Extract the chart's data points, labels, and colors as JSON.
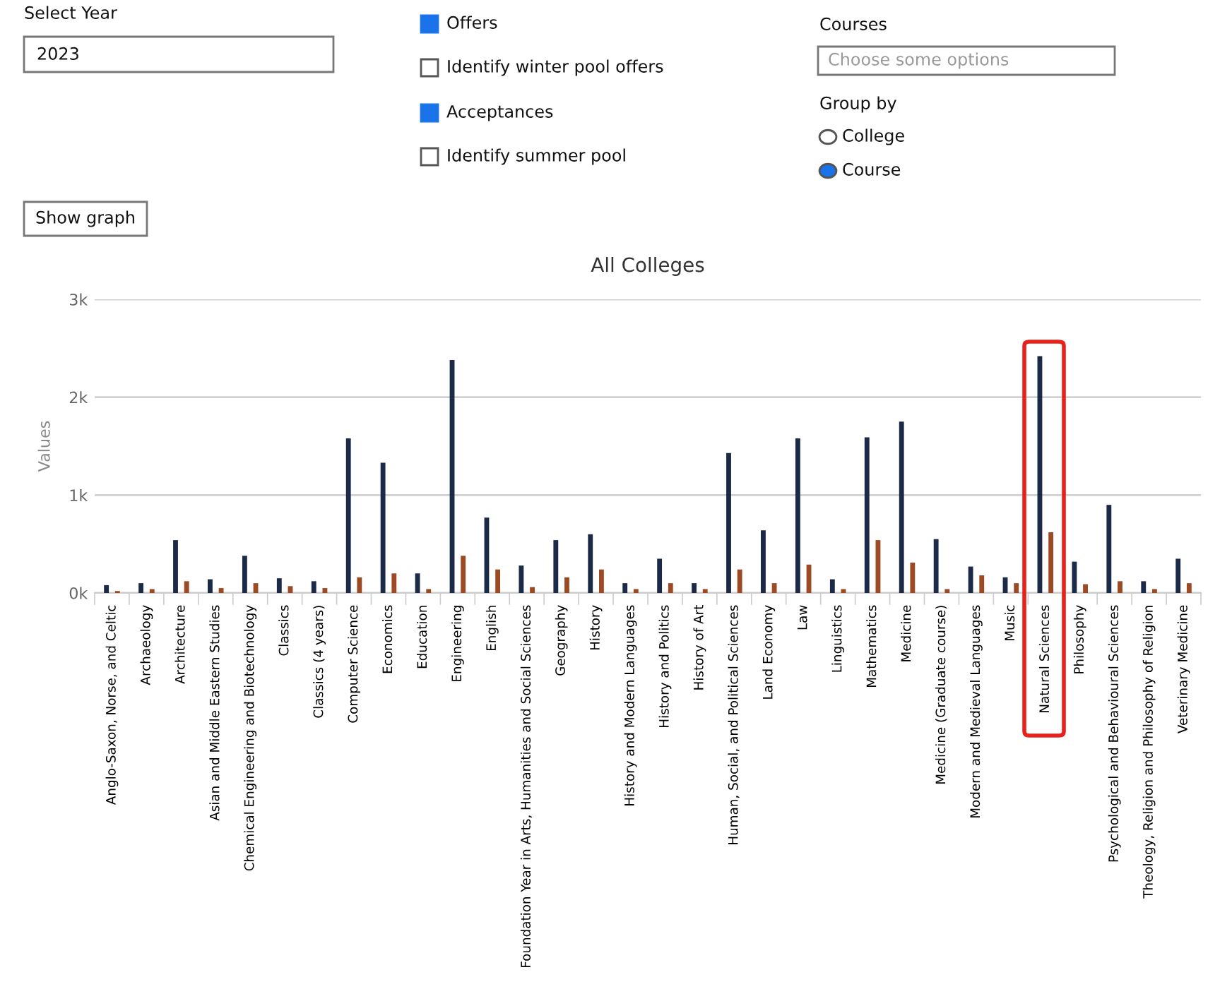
{
  "chart_data": {
    "type": "bar",
    "title": "All Colleges",
    "ylabel": "Values",
    "categories": [
      "Anglo-Saxon, Norse, and Celtic",
      "Archaeology",
      "Architecture",
      "Asian and Middle Eastern Studies",
      "Chemical Engineering and Biotechnology",
      "Classics",
      "Classics (4 years)",
      "Computer Science",
      "Economics",
      "Education",
      "Engineering",
      "English",
      "Foundation Year in Arts, Humanities and Social Sciences",
      "Geography",
      "History",
      "History and Modern Languages",
      "History and Politics",
      "History of Art",
      "Human, Social, and Political Sciences",
      "Land Economy",
      "Law",
      "Linguistics",
      "Mathematics",
      "Medicine",
      "Medicine (Graduate course)",
      "Modern and Medieval Languages",
      "Music",
      "Natural Sciences",
      "Philosophy",
      "Psychological and Behavioural Sciences",
      "Theology, Religion and Philosophy of Religion",
      "Veterinary Medicine"
    ],
    "series": [
      {
        "color": "#1b2a47",
        "values": [
          80,
          100,
          540,
          140,
          380,
          150,
          120,
          1580,
          1330,
          200,
          2380,
          770,
          280,
          540,
          600,
          100,
          350,
          100,
          1430,
          640,
          1580,
          140,
          1590,
          1750,
          550,
          270,
          160,
          2420,
          320,
          900,
          120,
          350
        ]
      },
      {
        "color": "#9c4a24",
        "values": [
          20,
          40,
          120,
          50,
          100,
          70,
          50,
          160,
          200,
          40,
          380,
          240,
          60,
          160,
          240,
          40,
          100,
          40,
          240,
          100,
          290,
          40,
          540,
          310,
          40,
          180,
          100,
          620,
          90,
          120,
          40,
          100
        ]
      }
    ],
    "ylim": [
      0,
      3000
    ],
    "yticks": [
      {
        "value": 0,
        "label": "0k"
      },
      {
        "value": 1000,
        "label": "1k"
      },
      {
        "value": 2000,
        "label": "2k"
      },
      {
        "value": 3000,
        "label": "3k"
      }
    ],
    "grid": "y",
    "annotations": [
      "Select Year",
      "2023",
      "Offers",
      "Identify winter pool offers",
      "Acceptances",
      "Identify summer pool",
      "Courses",
      "Choose some options",
      "Group by",
      "College",
      "Course",
      "Show graph"
    ]
  }
}
